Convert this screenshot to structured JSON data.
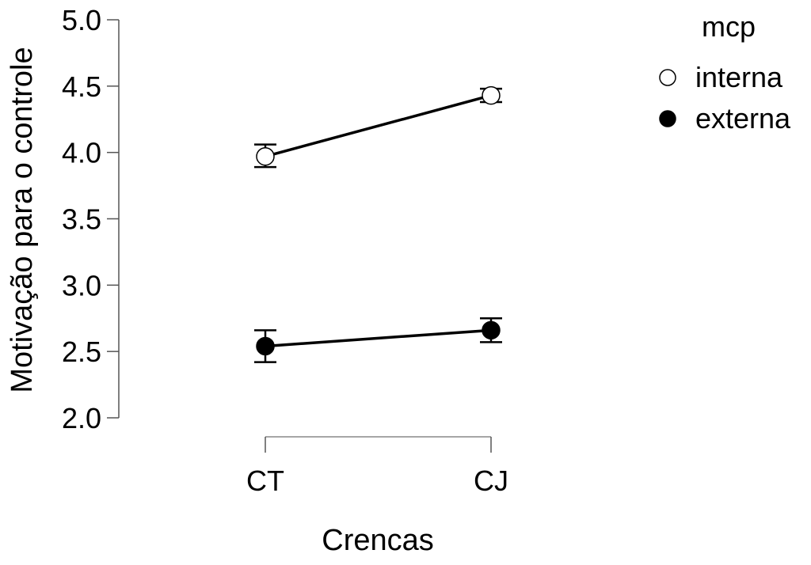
{
  "chart_data": {
    "type": "line",
    "xlabel": "Crencas",
    "ylabel": "Motivação para o controle",
    "categories": [
      "CT",
      "CJ"
    ],
    "ylim": [
      2.0,
      5.0
    ],
    "yticks": [
      "2.0",
      "2.5",
      "3.0",
      "3.5",
      "4.0",
      "4.5",
      "5.0"
    ],
    "grid": false,
    "legend": {
      "title": "mcp",
      "placement": "top-right"
    },
    "series": [
      {
        "name": "interna",
        "marker": "open-circle",
        "color": "#000000",
        "values": [
          3.97,
          4.43
        ],
        "error_low": [
          3.89,
          4.38
        ],
        "error_high": [
          4.06,
          4.48
        ]
      },
      {
        "name": "externa",
        "marker": "filled-circle",
        "color": "#000000",
        "values": [
          2.54,
          2.66
        ],
        "error_low": [
          2.42,
          2.57
        ],
        "error_high": [
          2.66,
          2.75
        ]
      }
    ]
  }
}
